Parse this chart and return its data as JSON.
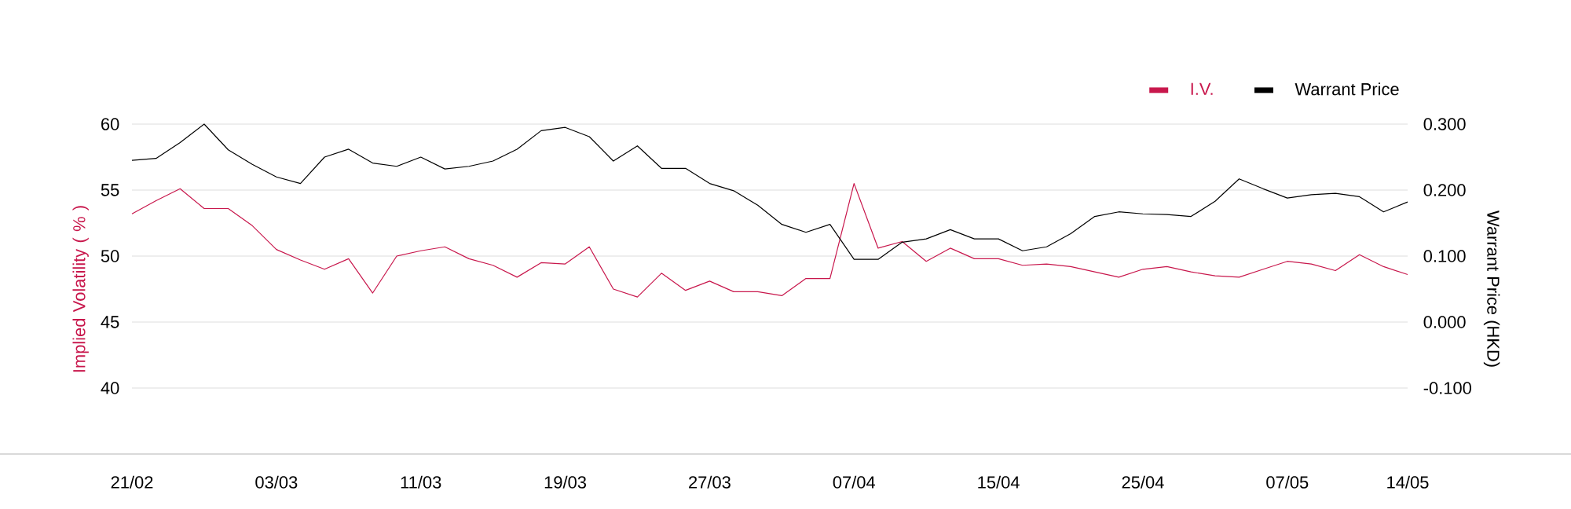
{
  "chart_data": {
    "type": "line",
    "categories": [
      "21/02",
      null,
      null,
      null,
      null,
      null,
      "03/03",
      null,
      null,
      null,
      null,
      null,
      "11/03",
      null,
      null,
      null,
      null,
      null,
      "19/03",
      null,
      null,
      null,
      null,
      null,
      "27/03",
      null,
      null,
      null,
      null,
      null,
      "07/04",
      null,
      null,
      null,
      null,
      null,
      "15/04",
      null,
      null,
      null,
      null,
      null,
      "25/04",
      null,
      null,
      null,
      null,
      null,
      "07/05",
      null,
      null,
      null,
      null,
      "14/05"
    ],
    "series": [
      {
        "name": "I.V.",
        "color": "#c8174c",
        "values": [
          53.2,
          54.2,
          55.1,
          53.6,
          53.6,
          52.3,
          50.5,
          49.7,
          49.0,
          49.8,
          47.2,
          50.0,
          50.4,
          50.7,
          49.8,
          49.3,
          48.4,
          49.5,
          49.4,
          50.7,
          47.5,
          46.9,
          48.7,
          47.4,
          48.1,
          47.3,
          47.3,
          47.0,
          48.3,
          48.3,
          55.5,
          50.6,
          51.1,
          49.6,
          50.6,
          49.8,
          49.8,
          49.3,
          49.4,
          49.2,
          48.8,
          48.4,
          49.0,
          49.2,
          48.8,
          48.5,
          48.4,
          49.0,
          49.6,
          49.4,
          48.9,
          50.1,
          49.2,
          48.6
        ]
      },
      {
        "name": "Warrant Price",
        "color": "#000000",
        "axis": "y2",
        "values": [
          0.245,
          0.248,
          0.272,
          0.3,
          0.261,
          0.239,
          0.22,
          0.21,
          0.25,
          0.262,
          0.241,
          0.236,
          0.25,
          0.232,
          0.236,
          0.244,
          0.262,
          0.29,
          0.295,
          0.281,
          0.244,
          0.267,
          0.233,
          0.233,
          0.21,
          0.199,
          0.177,
          0.148,
          0.136,
          0.148,
          0.095,
          0.095,
          0.121,
          0.126,
          0.14,
          0.126,
          0.126,
          0.108,
          0.114,
          0.134,
          0.16,
          0.167,
          0.164,
          0.163,
          0.16,
          0.183,
          0.217,
          0.202,
          0.188,
          0.193,
          0.195,
          0.19,
          0.167,
          0.182
        ]
      }
    ],
    "ylabel": "Implied Volatility ( % )",
    "y2label": "Warrant Price (HKD)",
    "ylim": [
      35,
      60
    ],
    "yticks": [
      40,
      45,
      50,
      55,
      60
    ],
    "y2lim": [
      -0.2,
      0.3
    ],
    "y2ticks": [
      {
        "value": -0.1,
        "label": "-0.100"
      },
      {
        "value": 0,
        "label": "0.000"
      },
      {
        "value": 0.1,
        "label": "0.100"
      },
      {
        "value": 0.2,
        "label": "0.200"
      },
      {
        "value": 0.3,
        "label": "0.300"
      }
    ],
    "grid": "y",
    "legend": "top right"
  }
}
